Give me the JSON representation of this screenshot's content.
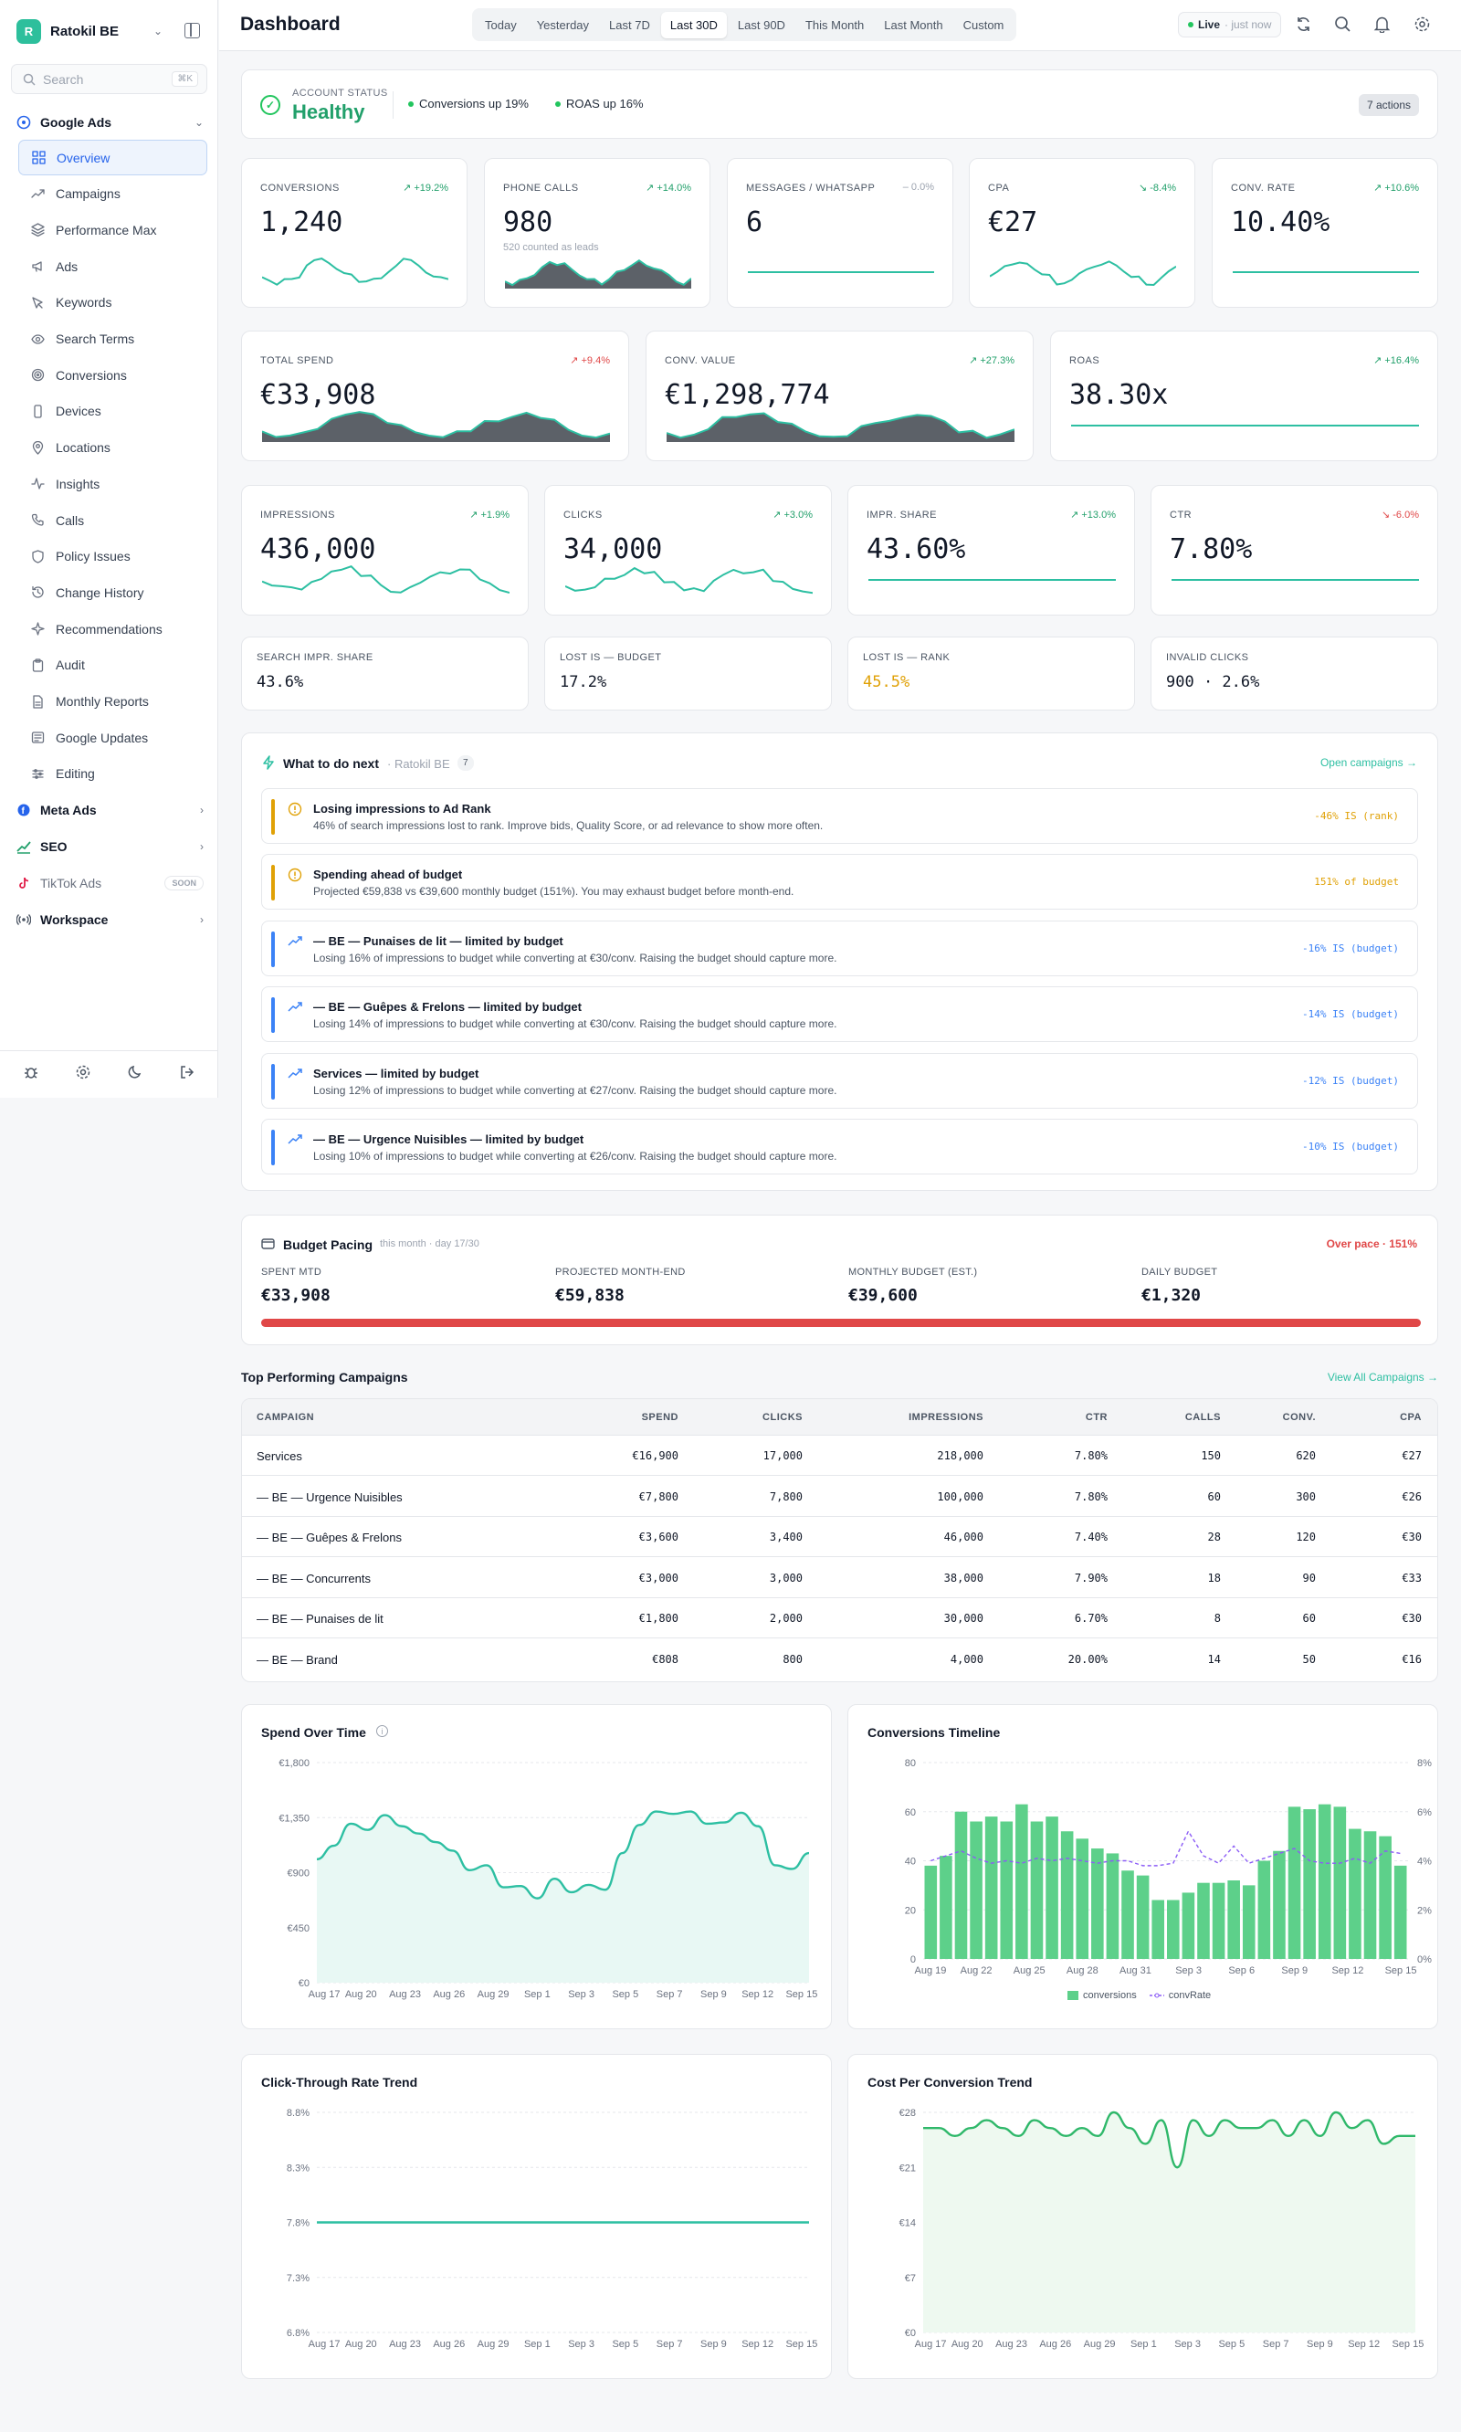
{
  "sidebar": {
    "workspace": {
      "initial": "R",
      "name": "Ratokil BE"
    },
    "search": {
      "placeholder": "Search",
      "shortcut": "⌘K"
    },
    "groups": {
      "google": "Google Ads",
      "meta": "Meta Ads",
      "seo": "SEO",
      "tiktok": "TikTok Ads",
      "tiktok_badge": "SOON",
      "workspace": "Workspace"
    },
    "items": [
      {
        "label": "Overview",
        "icon": "grid-icon"
      },
      {
        "label": "Campaigns",
        "icon": "trend-icon"
      },
      {
        "label": "Performance Max",
        "icon": "layers-icon"
      },
      {
        "label": "Ads",
        "icon": "megaphone-icon"
      },
      {
        "label": "Keywords",
        "icon": "cursor-icon"
      },
      {
        "label": "Search Terms",
        "icon": "eye-icon"
      },
      {
        "label": "Conversions",
        "icon": "target-icon"
      },
      {
        "label": "Devices",
        "icon": "phone-icon"
      },
      {
        "label": "Locations",
        "icon": "pin-icon"
      },
      {
        "label": "Insights",
        "icon": "activity-icon"
      },
      {
        "label": "Calls",
        "icon": "call-icon"
      },
      {
        "label": "Policy Issues",
        "icon": "shield-icon"
      },
      {
        "label": "Change History",
        "icon": "history-icon"
      },
      {
        "label": "Recommendations",
        "icon": "sparkle-icon"
      },
      {
        "label": "Audit",
        "icon": "clipboard-icon"
      },
      {
        "label": "Monthly Reports",
        "icon": "report-icon"
      },
      {
        "label": "Google Updates",
        "icon": "news-icon"
      },
      {
        "label": "Editing",
        "icon": "sliders-icon"
      }
    ]
  },
  "header": {
    "title": "Dashboard",
    "ranges": [
      "Today",
      "Yesterday",
      "Last 7D",
      "Last 30D",
      "Last 90D",
      "This Month",
      "Last Month",
      "Custom"
    ],
    "selected_range": "Last 30D",
    "live_label": "Live",
    "live_time": "· just now"
  },
  "status": {
    "label": "ACCOUNT STATUS",
    "value": "Healthy",
    "chip1": "Conversions up 19%",
    "chip2": "ROAS up 16%",
    "actions": "7 actions"
  },
  "kpis_row1": [
    {
      "label": "CONVERSIONS",
      "delta": "↗ +19.2%",
      "value": "1,240",
      "sub": "",
      "trend": "pos"
    },
    {
      "label": "PHONE CALLS",
      "delta": "↗ +14.0%",
      "value": "980",
      "sub": "520 counted as leads",
      "trend": "pos"
    },
    {
      "label": "MESSAGES / WHATSAPP",
      "delta": "– 0.0%",
      "value": "6",
      "sub": "",
      "trend": "neu"
    },
    {
      "label": "CPA",
      "delta": "↘ -8.4%",
      "value": "€27",
      "sub": "",
      "trend": "pos"
    },
    {
      "label": "CONV. RATE",
      "delta": "↗ +10.6%",
      "value": "10.40%",
      "sub": "",
      "trend": "pos"
    }
  ],
  "kpis_row2": [
    {
      "label": "TOTAL SPEND",
      "delta": "↗ +9.4%",
      "value": "€33,908",
      "trend": "neg"
    },
    {
      "label": "CONV. VALUE",
      "delta": "↗ +27.3%",
      "value": "€1,298,774",
      "trend": "pos"
    },
    {
      "label": "ROAS",
      "delta": "↗ +16.4%",
      "value": "38.30x",
      "trend": "pos"
    }
  ],
  "kpis_row3": [
    {
      "label": "IMPRESSIONS",
      "delta": "↗ +1.9%",
      "value": "436,000",
      "trend": "pos"
    },
    {
      "label": "CLICKS",
      "delta": "↗ +3.0%",
      "value": "34,000",
      "trend": "pos"
    },
    {
      "label": "IMPR. SHARE",
      "delta": "↗ +13.0%",
      "value": "43.60%",
      "trend": "pos"
    },
    {
      "label": "CTR",
      "delta": "↘ -6.0%",
      "value": "7.80%",
      "trend": "neg"
    }
  ],
  "small_stats": [
    {
      "label": "SEARCH IMPR. SHARE",
      "value": "43.6%",
      "color": "#111827"
    },
    {
      "label": "LOST IS — BUDGET",
      "value": "17.2%",
      "color": "#111827"
    },
    {
      "label": "LOST IS — RANK",
      "value": "45.5%",
      "color": "#e0a106"
    },
    {
      "label": "INVALID CLICKS",
      "value": "900 · 2.6%",
      "color": "#111827"
    }
  ],
  "next": {
    "title": "What to do next",
    "account": "· Ratokil BE",
    "count": "7",
    "link": "Open campaigns →",
    "items": [
      {
        "title": "Losing impressions to Ad Rank",
        "desc": "46% of search impressions lost to rank. Improve bids, Quality Score, or ad relevance to show more often.",
        "metric": "-46% IS (rank)",
        "kind": "warn"
      },
      {
        "title": "Spending ahead of budget",
        "desc": "Projected €59,838 vs €39,600 monthly budget (151%). You may exhaust budget before month-end.",
        "metric": "151% of budget",
        "kind": "warn"
      },
      {
        "title": "— BE — Punaises de lit — limited by budget",
        "desc": "Losing 16% of impressions to budget while converting at €30/conv. Raising the budget should capture more.",
        "metric": "-16% IS (budget)",
        "kind": "info"
      },
      {
        "title": "— BE — Guêpes & Frelons — limited by budget",
        "desc": "Losing 14% of impressions to budget while converting at €30/conv. Raising the budget should capture more.",
        "metric": "-14% IS (budget)",
        "kind": "info"
      },
      {
        "title": "Services — limited by budget",
        "desc": "Losing 12% of impressions to budget while converting at €27/conv. Raising the budget should capture more.",
        "metric": "-12% IS (budget)",
        "kind": "info"
      },
      {
        "title": "— BE — Urgence Nuisibles — limited by budget",
        "desc": "Losing 10% of impressions to budget while converting at €26/conv. Raising the budget should capture more.",
        "metric": "-10% IS (budget)",
        "kind": "info"
      }
    ]
  },
  "budget": {
    "title": "Budget Pacing",
    "sub": "this month · day 17/30",
    "status": "Over pace · 151%",
    "cols": [
      {
        "label": "SPENT MTD",
        "value": "€33,908"
      },
      {
        "label": "PROJECTED MONTH-END",
        "value": "€59,838"
      },
      {
        "label": "MONTHLY BUDGET (EST.)",
        "value": "€39,600"
      },
      {
        "label": "DAILY BUDGET",
        "value": "€1,320"
      }
    ],
    "progress": 1.0
  },
  "campaigns": {
    "title": "Top Performing Campaigns",
    "link": "View All Campaigns →",
    "headers": [
      "CAMPAIGN",
      "SPEND",
      "CLICKS",
      "IMPRESSIONS",
      "CTR",
      "CALLS",
      "CONV.",
      "CPA"
    ],
    "rows": [
      [
        "Services",
        "€16,900",
        "17,000",
        "218,000",
        "7.80%",
        "150",
        "620",
        "€27"
      ],
      [
        "— BE — Urgence Nuisibles",
        "€7,800",
        "7,800",
        "100,000",
        "7.80%",
        "60",
        "300",
        "€26"
      ],
      [
        "— BE — Guêpes & Frelons",
        "€3,600",
        "3,400",
        "46,000",
        "7.40%",
        "28",
        "120",
        "€30"
      ],
      [
        "— BE — Concurrents",
        "€3,000",
        "3,000",
        "38,000",
        "7.90%",
        "18",
        "90",
        "€33"
      ],
      [
        "— BE — Punaises de lit",
        "€1,800",
        "2,000",
        "30,000",
        "6.70%",
        "8",
        "60",
        "€30"
      ],
      [
        "— BE — Brand",
        "€808",
        "800",
        "4,000",
        "20.00%",
        "14",
        "50",
        "€16"
      ]
    ]
  },
  "chart_data": [
    {
      "type": "area",
      "title": "Spend Over Time",
      "x": [
        "Aug 17",
        "Aug 18",
        "Aug 19",
        "Aug 20",
        "Aug 21",
        "Aug 22",
        "Aug 23",
        "Aug 24",
        "Aug 25",
        "Aug 26",
        "Aug 27",
        "Aug 28",
        "Aug 29",
        "Aug 30",
        "Aug 31",
        "Sep 1",
        "Sep 2",
        "Sep 3",
        "Sep 4",
        "Sep 5",
        "Sep 6",
        "Sep 7",
        "Sep 8",
        "Sep 9",
        "Sep 10",
        "Sep 11",
        "Sep 12",
        "Sep 13",
        "Sep 14",
        "Sep 15"
      ],
      "xticks": [
        "Aug 17",
        "Aug 20",
        "Aug 23",
        "Aug 26",
        "Aug 29",
        "Sep 1",
        "Sep 3",
        "Sep 5",
        "Sep 7",
        "Sep 9",
        "Sep 12",
        "Sep 15"
      ],
      "y": [
        1010,
        1120,
        1300,
        1250,
        1370,
        1280,
        1220,
        1150,
        1080,
        920,
        960,
        780,
        790,
        690,
        850,
        740,
        800,
        760,
        1060,
        1290,
        1400,
        1380,
        1400,
        1300,
        1310,
        1390,
        1280,
        960,
        930,
        1060
      ],
      "yticks": [
        "€0",
        "€450",
        "€900",
        "€1,350",
        "€1,800"
      ],
      "ylim": [
        0,
        1800
      ]
    },
    {
      "type": "bar",
      "title": "Conversions Timeline",
      "xticks": [
        "Aug 19",
        "Aug 22",
        "Aug 25",
        "Aug 28",
        "Aug 31",
        "Sep 3",
        "Sep 6",
        "Sep 9",
        "Sep 12",
        "Sep 15"
      ],
      "series": [
        {
          "name": "conversions",
          "values": [
            38,
            42,
            60,
            56,
            58,
            56,
            63,
            56,
            58,
            52,
            49,
            45,
            43,
            36,
            34,
            24,
            24,
            27,
            31,
            31,
            32,
            30,
            40,
            44,
            62,
            61,
            63,
            62,
            53,
            52,
            50,
            38
          ]
        },
        {
          "name": "convRate",
          "values": [
            4.0,
            4.2,
            4.4,
            4.1,
            3.9,
            4.0,
            3.9,
            4.1,
            4.0,
            4.1,
            4.0,
            3.9,
            4.0,
            4.0,
            3.8,
            3.8,
            3.9,
            5.2,
            4.2,
            3.9,
            4.6,
            3.9,
            4.1,
            4.3,
            4.5,
            4.0,
            3.9,
            3.9,
            4.1,
            3.9,
            4.4,
            4.3
          ]
        }
      ],
      "y1ticks": [
        "0",
        "20",
        "40",
        "60",
        "80"
      ],
      "ylim": [
        0,
        80
      ],
      "y2ticks": [
        "0%",
        "2%",
        "4%",
        "6%",
        "8%"
      ],
      "y2lim": [
        0,
        8
      ]
    },
    {
      "type": "line",
      "title": "Click-Through Rate Trend",
      "xticks": [
        "Aug 17",
        "Aug 20",
        "Aug 23",
        "Aug 26",
        "Aug 29",
        "Sep 1",
        "Sep 3",
        "Sep 5",
        "Sep 7",
        "Sep 9",
        "Sep 12",
        "Sep 15"
      ],
      "y": [
        7.8,
        7.8,
        7.8,
        7.8,
        7.8,
        7.8,
        7.8,
        7.8,
        7.8,
        7.8,
        7.8,
        7.8,
        7.8,
        7.8,
        7.8,
        7.8,
        7.8,
        7.8,
        7.8,
        7.8,
        7.8,
        7.8,
        7.8,
        7.8,
        7.8,
        7.8,
        7.8,
        7.8,
        7.8,
        7.8
      ],
      "yticks": [
        "6.8%",
        "7.3%",
        "7.8%",
        "8.3%",
        "8.8%"
      ],
      "ylim": [
        6.8,
        8.8
      ]
    },
    {
      "type": "area",
      "title": "Cost Per Conversion Trend",
      "xticks": [
        "Aug 17",
        "Aug 20",
        "Aug 23",
        "Aug 26",
        "Aug 29",
        "Sep 1",
        "Sep 3",
        "Sep 5",
        "Sep 7",
        "Sep 9",
        "Sep 12",
        "Sep 15"
      ],
      "y": [
        26,
        26,
        25,
        26,
        27,
        26,
        25,
        27,
        26,
        25,
        26,
        25,
        28,
        26,
        24,
        27,
        21,
        27,
        25,
        27,
        26,
        26,
        27,
        25,
        27,
        25,
        28,
        26,
        27,
        24,
        25,
        25
      ],
      "yticks": [
        "€0",
        "€7",
        "€14",
        "€21",
        "€28"
      ],
      "ylim": [
        0,
        28
      ]
    }
  ],
  "legend": {
    "a": "conversions",
    "b": "convRate"
  },
  "colors": {
    "accent": "#2dbfa2",
    "positive": "#22a06b",
    "negative": "#e04848",
    "warn": "#e0a106",
    "info": "#3b82f6"
  }
}
